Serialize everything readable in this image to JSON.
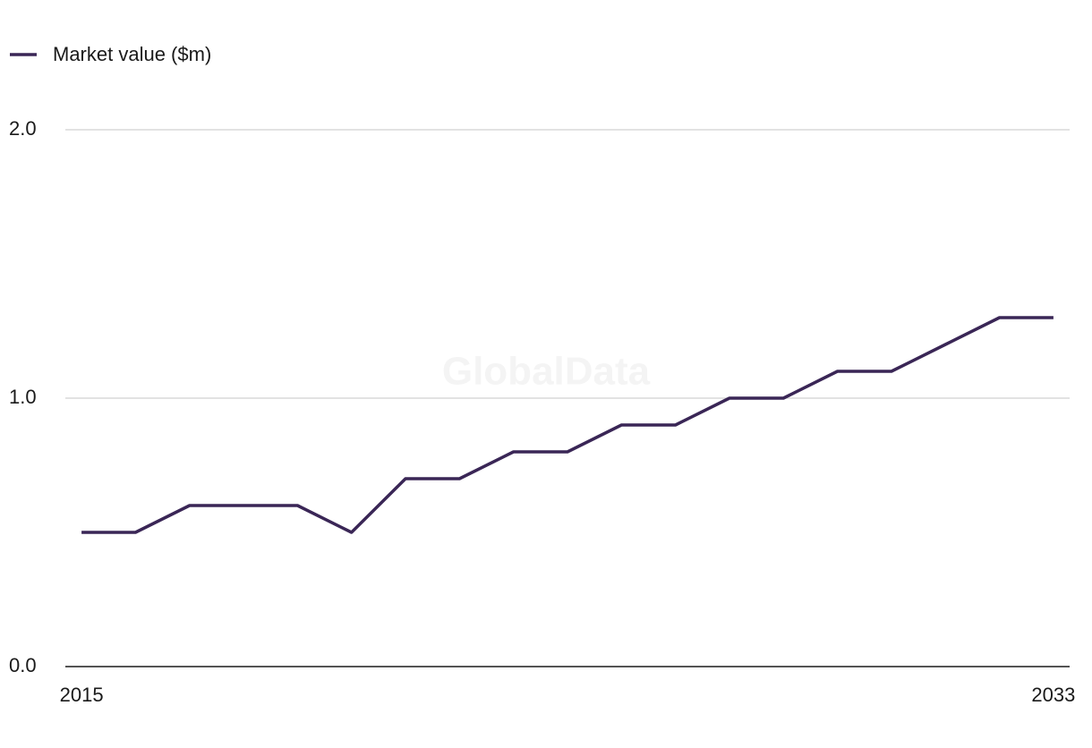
{
  "chart_data": {
    "type": "line",
    "watermark": "GlobalData",
    "x": [
      2015,
      2016,
      2017,
      2018,
      2019,
      2020,
      2021,
      2022,
      2023,
      2024,
      2025,
      2026,
      2027,
      2028,
      2029,
      2030,
      2031,
      2032,
      2033
    ],
    "series": [
      {
        "name": "Market value ($m)",
        "color": "#3a2656",
        "values": [
          0.5,
          0.5,
          0.6,
          0.6,
          0.6,
          0.5,
          0.7,
          0.7,
          0.8,
          0.8,
          0.9,
          0.9,
          1.0,
          1.0,
          1.1,
          1.1,
          1.2,
          1.3,
          1.3
        ]
      }
    ],
    "xlim": [
      2014.7,
      2033.3
    ],
    "xticks": [
      2015,
      2033
    ],
    "ylim": [
      0,
      2
    ],
    "yticks": [
      {
        "value": 0,
        "label": "0.0"
      },
      {
        "value": 1,
        "label": "1.0"
      },
      {
        "value": 2,
        "label": "2.0"
      }
    ],
    "grid": true,
    "legend": "top-left"
  }
}
